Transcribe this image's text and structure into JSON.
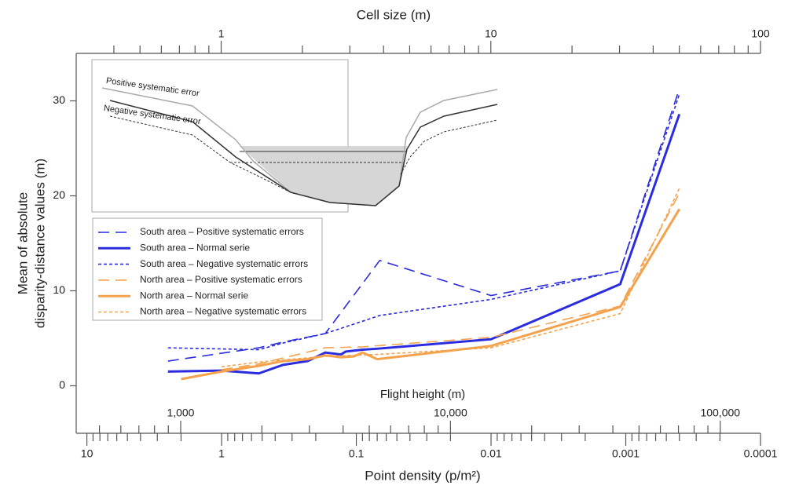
{
  "chart_data": {
    "type": "line",
    "y_label": [
      "Mean of absolute",
      "disparity-distance values (m)"
    ],
    "x_label": "Point density (p/m²)",
    "x2_label": "Cell size (m)",
    "x3_label": "Flight height (m)",
    "annotations": [
      "Positive systematic error",
      "Negative systematic error"
    ],
    "log_x": true,
    "ylim": [
      -5,
      35
    ],
    "yticks": [
      0,
      10,
      20,
      30
    ],
    "xlim": [
      12,
      0.0001
    ],
    "xticks": [
      10,
      1,
      0.1,
      0.01,
      0.001,
      0.0001
    ],
    "xminorticks": [
      9,
      8,
      7,
      6,
      5,
      4,
      3,
      2,
      0.9,
      0.8,
      0.7,
      0.6,
      0.5,
      0.4,
      0.3,
      0.2,
      0.09,
      0.08,
      0.07,
      0.06,
      0.05,
      0.04,
      0.03,
      0.02,
      0.009,
      0.008,
      0.007,
      0.006,
      0.005,
      0.004,
      0.003,
      0.002,
      0.0009,
      0.0008,
      0.0007,
      0.0006,
      0.0005,
      0.0004,
      0.0003,
      0.0002
    ],
    "x2lim": [
      0.29,
      100
    ],
    "x2ticks": [
      1,
      10,
      100
    ],
    "x2minorticks": [
      0.4,
      0.5,
      0.6,
      0.7,
      0.8,
      0.9,
      2,
      3,
      4,
      5,
      6,
      7,
      8,
      9,
      20,
      30,
      40,
      50,
      60,
      70,
      80,
      90
    ],
    "x3lim": [
      410,
      141000
    ],
    "x3ticks": [
      {
        "value": 1000,
        "label": "1,000"
      },
      {
        "value": 10000,
        "label": "10,000"
      },
      {
        "value": 100000,
        "label": "100,000"
      }
    ],
    "x3minorticks": [
      500,
      600,
      700,
      800,
      900,
      2000,
      3000,
      4000,
      5000,
      6000,
      7000,
      8000,
      9000,
      20000,
      30000,
      40000,
      50000,
      60000,
      70000,
      80000,
      90000
    ],
    "series": [
      {
        "name": "South area – Positive systematic errors",
        "color": "#2b2bdf",
        "dash": "long",
        "x": [
          2.5,
          0.53,
          0.35,
          0.17,
          0.067,
          0.01,
          0.0011,
          0.0004
        ],
        "values": [
          2.6,
          4.0,
          4.6,
          5.5,
          13.2,
          9.5,
          12.1,
          31.3
        ]
      },
      {
        "name": "South area – Normal serie",
        "color": "#2b2bdf",
        "dash": "solid",
        "x": [
          2.5,
          1,
          0.53,
          0.35,
          0.23,
          0.17,
          0.13,
          0.12,
          0.09,
          0.07,
          0.01,
          0.0011,
          0.0004
        ],
        "values": [
          1.5,
          1.6,
          1.3,
          2.2,
          2.6,
          3.5,
          3.3,
          3.6,
          3.8,
          3.9,
          4.9,
          10.7,
          28.6
        ]
      },
      {
        "name": "South area – Negative systematic errors",
        "color": "#2b2bdf",
        "dash": "short",
        "x": [
          2.5,
          0.53,
          0.35,
          0.17,
          0.067,
          0.01,
          0.0011,
          0.0004
        ],
        "values": [
          4.0,
          3.8,
          4.5,
          5.5,
          7.4,
          9.1,
          12.1,
          30.7
        ]
      },
      {
        "name": "North area – Positive systematic errors",
        "color": "#f5a24c",
        "dash": "long",
        "x": [
          1,
          0.53,
          0.17,
          0.09,
          0.01,
          0.0011,
          0.0004
        ],
        "values": [
          1.7,
          2.3,
          4.0,
          4.1,
          5.1,
          8.4,
          20.3
        ]
      },
      {
        "name": "North area – Normal serie",
        "color": "#f5a24c",
        "dash": "solid",
        "x": [
          2.0,
          1,
          0.53,
          0.35,
          0.23,
          0.17,
          0.13,
          0.104,
          0.09,
          0.07,
          0.01,
          0.0011,
          0.0004
        ],
        "values": [
          0.7,
          1.5,
          2.1,
          2.6,
          2.8,
          3.2,
          3.0,
          3.1,
          3.5,
          2.8,
          4.2,
          8.3,
          18.6
        ]
      },
      {
        "name": "North area – Negative systematic errors",
        "color": "#f5a24c",
        "dash": "short",
        "x": [
          1,
          0.53,
          0.17,
          0.07,
          0.01,
          0.0011,
          0.0004
        ],
        "values": [
          2.0,
          2.5,
          3.1,
          3.3,
          4.0,
          7.6,
          20.8
        ]
      }
    ]
  }
}
